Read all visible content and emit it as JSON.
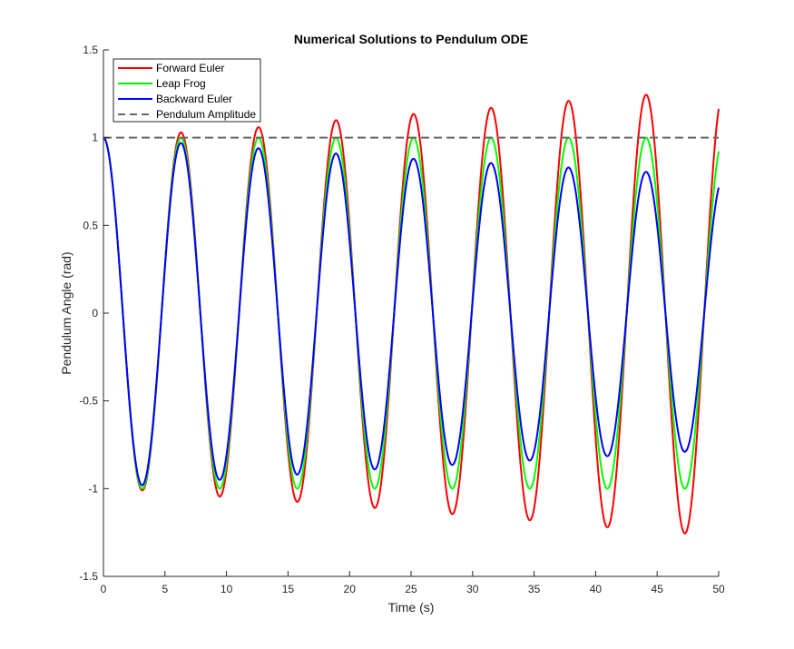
{
  "chart_data": {
    "type": "line",
    "title": "Numerical Solutions to Pendulum ODE",
    "xlabel": "Time (s)",
    "ylabel": "Pendulum Angle (rad)",
    "xlim": [
      0,
      50
    ],
    "ylim": [
      -1.5,
      1.5
    ],
    "xticks": [
      0,
      5,
      10,
      15,
      20,
      25,
      30,
      35,
      40,
      45,
      50
    ],
    "yticks": [
      -1.5,
      -1,
      -0.5,
      0,
      0.5,
      1,
      1.5
    ],
    "xtick_labels": [
      "0",
      "5",
      "10",
      "15",
      "20",
      "25",
      "30",
      "35",
      "40",
      "45",
      "50"
    ],
    "ytick_labels": [
      "-1.5",
      "-1",
      "-0.5",
      "0",
      "0.5",
      "1",
      "1.5"
    ],
    "grid": false,
    "legend_position": "top-left",
    "period": 6.3,
    "series": [
      {
        "name": "Forward Euler",
        "color": "#ff0000",
        "style": "solid",
        "peaks": [
          [
            0,
            1.0
          ],
          [
            3.15,
            -1.01
          ],
          [
            6.3,
            1.03
          ],
          [
            9.45,
            -1.045
          ],
          [
            12.6,
            1.06
          ],
          [
            15.75,
            -1.075
          ],
          [
            18.9,
            1.1
          ],
          [
            22.05,
            -1.11
          ],
          [
            25.2,
            1.135
          ],
          [
            28.35,
            -1.145
          ],
          [
            31.5,
            1.17
          ],
          [
            34.65,
            -1.18
          ],
          [
            37.8,
            1.21
          ],
          [
            40.95,
            -1.22
          ],
          [
            44.1,
            1.245
          ],
          [
            47.25,
            -1.255
          ]
        ],
        "end": [
          50,
          0.91
        ]
      },
      {
        "name": "Leap Frog",
        "color": "#00ff00",
        "style": "solid",
        "peaks": [
          [
            0,
            1.0
          ],
          [
            3.15,
            -1.0
          ],
          [
            6.3,
            1.0
          ],
          [
            9.45,
            -1.0
          ],
          [
            12.6,
            1.0
          ],
          [
            15.75,
            -1.0
          ],
          [
            18.9,
            1.0
          ],
          [
            22.05,
            -1.0
          ],
          [
            25.2,
            1.0
          ],
          [
            28.35,
            -1.0
          ],
          [
            31.5,
            1.0
          ],
          [
            34.65,
            -1.0
          ],
          [
            37.8,
            1.0
          ],
          [
            40.95,
            -1.0
          ],
          [
            44.1,
            1.0
          ],
          [
            47.25,
            -1.0
          ]
        ],
        "end": [
          50,
          0.72
        ]
      },
      {
        "name": "Backward Euler",
        "color": "#0000ff",
        "style": "solid",
        "peaks": [
          [
            0,
            1.0
          ],
          [
            3.15,
            -0.98
          ],
          [
            6.3,
            0.97
          ],
          [
            9.45,
            -0.95
          ],
          [
            12.6,
            0.94
          ],
          [
            15.75,
            -0.92
          ],
          [
            18.9,
            0.91
          ],
          [
            22.05,
            -0.89
          ],
          [
            25.2,
            0.88
          ],
          [
            28.35,
            -0.865
          ],
          [
            31.5,
            0.855
          ],
          [
            34.65,
            -0.84
          ],
          [
            37.8,
            0.83
          ],
          [
            40.95,
            -0.815
          ],
          [
            44.1,
            0.805
          ],
          [
            47.25,
            -0.79
          ]
        ],
        "end": [
          50,
          0.56
        ]
      },
      {
        "name": "Pendulum Amplitude",
        "color": "#666666",
        "style": "dashed",
        "constant": 1.0
      }
    ]
  }
}
